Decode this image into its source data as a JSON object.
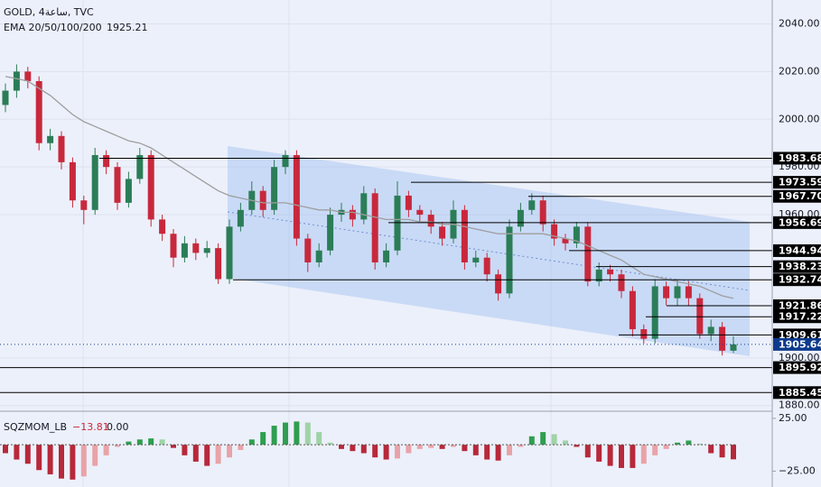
{
  "chart_data": {
    "type": "candlestick",
    "title": "GOLD, 4ساعة, TVC",
    "ylim": [
      1878,
      2050
    ],
    "yticks": [
      {
        "value": 2040,
        "label": "2040.00"
      },
      {
        "value": 2020,
        "label": "2020.00"
      },
      {
        "value": 2000,
        "label": "2000.00"
      },
      {
        "value": 1980,
        "label": "1980.00"
      },
      {
        "value": 1960,
        "label": "1960.00"
      },
      {
        "value": 1900,
        "label": "1900.00"
      },
      {
        "value": 1880,
        "label": "1880.00"
      }
    ],
    "grid": true,
    "colors": {
      "up": "#2b7d57",
      "down": "#c8283c",
      "ema": "#9e9e9e",
      "level": "#000000",
      "current": "#0d3a8c"
    },
    "open": [
      2006,
      2012,
      2020,
      2016,
      1990,
      1993,
      1982,
      1966,
      1962,
      1985,
      1980,
      1965,
      1975,
      1985,
      1958,
      1952,
      1942,
      1948,
      1944,
      1946,
      1933,
      1955,
      1962,
      1970,
      1962,
      1980,
      1985,
      1950,
      1940,
      1945,
      1960,
      1962,
      1958,
      1969,
      1940,
      1945,
      1968,
      1962,
      1960,
      1955,
      1950,
      1962,
      1940,
      1942,
      1935,
      1927,
      1955,
      1962,
      1966,
      1956,
      1950,
      1948,
      1955,
      1932,
      1937,
      1935,
      1928,
      1912,
      1908,
      1930,
      1925,
      1930,
      1925,
      1910,
      1913,
      1903
    ],
    "high": [
      2015,
      2023,
      2022,
      2018,
      1996,
      1995,
      1984,
      1968,
      1988,
      1987,
      1982,
      1978,
      1988,
      1987,
      1960,
      1954,
      1951,
      1950,
      1949,
      1948,
      1958,
      1965,
      1974,
      1972,
      1983,
      1987,
      1987,
      1952,
      1948,
      1963,
      1965,
      1964,
      1972,
      1971,
      1948,
      1974,
      1970,
      1964,
      1962,
      1957,
      1966,
      1964,
      1945,
      1944,
      1937,
      1958,
      1965,
      1969,
      1968,
      1958,
      1952,
      1957,
      1957,
      1940,
      1939,
      1937,
      1930,
      1914,
      1933,
      1932,
      1933,
      1932,
      1927,
      1916,
      1915,
      1909
    ],
    "low": [
      2003,
      2009,
      2013,
      1987,
      1987,
      1979,
      1963,
      1956,
      1960,
      1977,
      1962,
      1963,
      1973,
      1955,
      1949,
      1938,
      1940,
      1941,
      1942,
      1931,
      1931,
      1953,
      1960,
      1959,
      1960,
      1977,
      1947,
      1936,
      1938,
      1943,
      1957,
      1955,
      1956,
      1937,
      1938,
      1943,
      1959,
      1957,
      1952,
      1947,
      1948,
      1937,
      1938,
      1932,
      1924,
      1925,
      1953,
      1960,
      1953,
      1947,
      1945,
      1946,
      1930,
      1930,
      1932,
      1925,
      1909,
      1906,
      1906,
      1922,
      1922,
      1922,
      1908,
      1907,
      1901,
      1902
    ],
    "close": [
      2012,
      2020,
      2016,
      1990,
      1993,
      1982,
      1966,
      1962,
      1985,
      1980,
      1965,
      1975,
      1985,
      1958,
      1952,
      1942,
      1948,
      1944,
      1946,
      1933,
      1955,
      1962,
      1970,
      1962,
      1980,
      1985,
      1950,
      1940,
      1945,
      1960,
      1962,
      1958,
      1969,
      1940,
      1945,
      1968,
      1962,
      1960,
      1955,
      1950,
      1962,
      1940,
      1942,
      1935,
      1927,
      1955,
      1962,
      1966,
      1956,
      1950,
      1948,
      1955,
      1932,
      1937,
      1935,
      1928,
      1912,
      1908,
      1930,
      1925,
      1930,
      1925,
      1910,
      1913,
      1903,
      1905.64
    ],
    "ema": {
      "label": "EMA 20/50/100/200",
      "last": 1925.21,
      "values": [
        2018,
        2017,
        2016,
        2013,
        2010,
        2006,
        2002,
        1999,
        1997,
        1995,
        1993,
        1991,
        1990,
        1988,
        1985,
        1982,
        1979,
        1976,
        1973,
        1970,
        1968,
        1967,
        1966,
        1965,
        1965,
        1965,
        1964,
        1963,
        1962,
        1962,
        1961,
        1961,
        1960,
        1959,
        1958,
        1958,
        1958,
        1957,
        1957,
        1956,
        1956,
        1955,
        1954,
        1953,
        1952,
        1952,
        1952,
        1952,
        1952,
        1951,
        1950,
        1949,
        1947,
        1945,
        1943,
        1941,
        1938,
        1935,
        1934,
        1933,
        1932,
        1931,
        1930,
        1928,
        1926,
        1925
      ]
    },
    "levels": [
      1983.68,
      1973.59,
      {
        "value": 1967.7,
        "label": "1967.70"
      },
      1956.69,
      1944.94,
      1938.23,
      1932.74,
      1921.86,
      1917.22,
      1909.61,
      1895.92,
      1885.45
    ],
    "last_price": 1905.64,
    "oscillator": {
      "name": "SQZMOM_LB",
      "value_label": "−13.81",
      "zero_label": "0.00",
      "ylim": [
        -40,
        30
      ],
      "yticks": [
        {
          "value": 25,
          "label": "25.00"
        },
        {
          "value": -25,
          "label": "−25.00"
        }
      ],
      "colors": {
        "pos_rising": "#2e9e4f",
        "pos_falling": "#9fd3a6",
        "neg_falling": "#b7283a",
        "neg_rising": "#e8a3a8"
      },
      "values": [
        -8,
        -14,
        -18,
        -24,
        -28,
        -32,
        -33,
        -30,
        -20,
        -10,
        -2,
        3,
        5,
        6,
        5,
        -3,
        -10,
        -16,
        -20,
        -18,
        -12,
        -5,
        5,
        12,
        18,
        21,
        22,
        21,
        12,
        2,
        -4,
        -6,
        -8,
        -12,
        -14,
        -13,
        -8,
        -4,
        -3,
        -4,
        -2,
        -6,
        -10,
        -14,
        -15,
        -10,
        -2,
        8,
        12,
        10,
        4,
        -2,
        -12,
        -16,
        -20,
        -22,
        -22,
        -18,
        -10,
        -4,
        2,
        4,
        1,
        -8,
        -12,
        -13.81
      ]
    }
  }
}
